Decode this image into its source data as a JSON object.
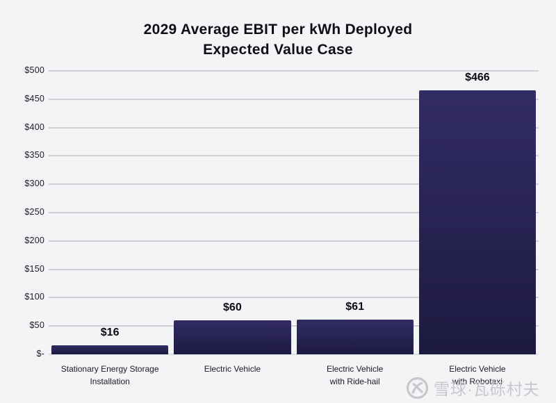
{
  "title": {
    "line1": "2029 Average EBIT per kWh Deployed",
    "line2": "Expected Value Case"
  },
  "chart_data": {
    "type": "bar",
    "title": "2029 Average EBIT per kWh Deployed",
    "subtitle": "Expected Value Case",
    "categories": [
      [
        "Stationary Energy Storage",
        "Installation"
      ],
      [
        "Electric Vehicle"
      ],
      [
        "Electric Vehicle",
        "with Ride-hail"
      ],
      [
        "Electric Vehicle",
        "with Robotaxi"
      ]
    ],
    "values": [
      16,
      60,
      61,
      466
    ],
    "value_labels": [
      "$16",
      "$60",
      "$61",
      "$466"
    ],
    "y_tick_labels": [
      "$500",
      "$450",
      "$400",
      "$350",
      "$300",
      "$250",
      "$200",
      "$150",
      "$100",
      "$50",
      "$-"
    ],
    "y_tick_values": [
      500,
      450,
      400,
      350,
      300,
      250,
      200,
      150,
      100,
      50,
      0
    ],
    "ylim": [
      0,
      500
    ],
    "xlabel": "",
    "ylabel": "",
    "grid": true,
    "legend": "none",
    "colors": {
      "background": "#f3f4f6",
      "gridline": "#cfd0d5",
      "baseline": "#ecedf1",
      "bar_top": "#322c64",
      "bar_bottom": "#1d1a40",
      "text": "#1b1b26",
      "watermark": "#c7c7cc"
    }
  },
  "watermark": {
    "text": "雪球·瓦砾村夫",
    "logo": "xueqiu-logo"
  }
}
